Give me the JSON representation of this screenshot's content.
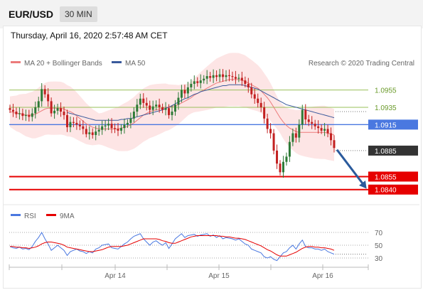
{
  "header": {
    "pair": "EUR/USD",
    "timeframe": "30 MIN",
    "datetime": "Thursday, April 16, 2020 2:57:48 AM CET",
    "copyright": "Research © 2020 Trading Central"
  },
  "legend": {
    "ma20": "MA 20 + Bollinger Bands",
    "ma50": "MA 50",
    "rsi": "RSI",
    "rsi_ma": "9MA"
  },
  "colors": {
    "ma20": "#ec7b7b",
    "ma50": "#3a5a9c",
    "bands": "#fde0e0",
    "resistance": "#9ac05a",
    "pivot": "#4a78e0",
    "support": "#e60000",
    "price_tag": "#333333",
    "arrow": "#2a5a9c",
    "candle_up": "#2d7a36",
    "candle_down": "#c22020",
    "rsi_line": "#4a78e0",
    "rsi_ma": "#e60000"
  },
  "chart_data": [
    {
      "type": "candlestick",
      "title": "EUR/USD",
      "ylim": [
        1.0825,
        1.0985
      ],
      "x_ticks": [
        "Apr 14",
        "Apr 15",
        "Apr 16"
      ],
      "levels": [
        {
          "value": 1.0955,
          "label": "1.0955",
          "kind": "resistance"
        },
        {
          "value": 1.0935,
          "label": "1.0935",
          "kind": "resistance"
        },
        {
          "value": 1.0915,
          "label": "1.0915",
          "kind": "pivot"
        },
        {
          "value": 1.0885,
          "label": "1.0885",
          "kind": "price"
        },
        {
          "value": 1.0855,
          "label": "1.0855",
          "kind": "support"
        },
        {
          "value": 1.084,
          "label": "1.0840",
          "kind": "support"
        }
      ],
      "path_close": [
        1.0932,
        1.093,
        1.0927,
        1.0928,
        1.0925,
        1.0926,
        1.0924,
        1.0928,
        1.0935,
        1.0942,
        1.0956,
        1.095,
        1.0942,
        1.0928,
        1.0931,
        1.0934,
        1.093,
        1.0926,
        1.0912,
        1.0918,
        1.0917,
        1.0915,
        1.0913,
        1.091,
        1.0904,
        1.0906,
        1.0903,
        1.0907,
        1.0909,
        1.0913,
        1.0914,
        1.0916,
        1.0911,
        1.091,
        1.0908,
        1.0911,
        1.0915,
        1.0917,
        1.0922,
        1.093,
        1.0938,
        1.0945,
        1.094,
        1.0937,
        1.0932,
        1.0936,
        1.0938,
        1.0935,
        1.0932,
        1.0934,
        1.0926,
        1.093,
        1.0938,
        1.0946,
        1.0955,
        1.0951,
        1.0958,
        1.0962,
        1.0965,
        1.0963,
        1.0966,
        1.0968,
        1.0971,
        1.0969,
        1.0972,
        1.097,
        1.0973,
        1.097,
        1.0972,
        1.0971,
        1.097,
        1.0968,
        1.0969,
        1.0966,
        1.0962,
        1.0958,
        1.095,
        1.0945,
        1.094,
        1.0935,
        1.0922,
        1.091,
        1.0905,
        1.0885,
        1.087,
        1.086,
        1.0872,
        1.0878,
        1.0895,
        1.0905,
        1.09,
        1.0915,
        1.0932,
        1.0921,
        1.0918,
        1.0916,
        1.0913,
        1.0911,
        1.0908,
        1.091,
        1.0905,
        1.0897,
        1.0888
      ],
      "ma20": [
        1.093,
        1.0929,
        1.0928,
        1.0928,
        1.0927,
        1.0926,
        1.0926,
        1.0926,
        1.0927,
        1.0929,
        1.0931,
        1.0933,
        1.0934,
        1.0934,
        1.0934,
        1.0934,
        1.0934,
        1.0933,
        1.0931,
        1.093,
        1.0928,
        1.0925,
        1.0922,
        1.0919,
        1.0916,
        1.0914,
        1.0912,
        1.0911,
        1.091,
        1.091,
        1.091,
        1.091,
        1.091,
        1.091,
        1.091,
        1.0911,
        1.0912,
        1.0913,
        1.0915,
        1.0917,
        1.092,
        1.0923,
        1.0926,
        1.0928,
        1.093,
        1.0931,
        1.0932,
        1.0933,
        1.0934,
        1.0935,
        1.0935,
        1.0936,
        1.0937,
        1.0938,
        1.094,
        1.0942,
        1.0944,
        1.0946,
        1.0949,
        1.0951,
        1.0953,
        1.0955,
        1.0957,
        1.0959,
        1.0961,
        1.0963,
        1.0964,
        1.0965,
        1.0966,
        1.0967,
        1.0967,
        1.0967,
        1.0967,
        1.0966,
        1.0965,
        1.0963,
        1.0961,
        1.0959,
        1.0957,
        1.0954,
        1.095,
        1.0946,
        1.0941,
        1.0935,
        1.0929,
        1.0923,
        1.0918,
        1.0914,
        1.0911,
        1.0909,
        1.0907,
        1.0906,
        1.0906,
        1.0906,
        1.0906,
        1.0906,
        1.0906,
        1.0906,
        1.0906,
        1.0906,
        1.0905,
        1.0904,
        1.0903
      ],
      "ma50": [
        null,
        null,
        null,
        null,
        null,
        null,
        null,
        null,
        null,
        null,
        null,
        null,
        null,
        null,
        null,
        null,
        null,
        null,
        1.0929,
        1.0928,
        1.0927,
        1.0926,
        1.0925,
        1.0924,
        1.0923,
        1.0922,
        1.0921,
        1.092,
        1.092,
        1.092,
        1.092,
        1.092,
        1.092,
        1.092,
        1.092,
        1.0921,
        1.0921,
        1.0922,
        1.0922,
        1.0923,
        1.0924,
        1.0925,
        1.0926,
        1.0927,
        1.0928,
        1.0929,
        1.093,
        1.0931,
        1.0932,
        1.0934,
        1.0935,
        1.0937,
        1.0939,
        1.0941,
        1.0943,
        1.0945,
        1.0946,
        1.0948,
        1.095,
        1.0951,
        1.0953,
        1.0954,
        1.0955,
        1.0956,
        1.0957,
        1.0958,
        1.0959,
        1.096,
        1.096,
        1.0961,
        1.0961,
        1.0961,
        1.0961,
        1.0961,
        1.096,
        1.0959,
        1.0958,
        1.0957,
        1.0956,
        1.0954,
        1.0952,
        1.095,
        1.0948,
        1.0946,
        1.0944,
        1.0942,
        1.094,
        1.0938,
        1.0937,
        1.0936,
        1.0935,
        1.0934,
        1.0933,
        1.0932,
        1.0931,
        1.093,
        1.0929,
        1.0928,
        1.0927,
        1.0926,
        1.0925,
        1.0924,
        1.0923
      ],
      "band_width": 0.0022,
      "projection": {
        "from": 1.0886,
        "to": 1.084
      }
    },
    {
      "type": "line",
      "title": "RSI",
      "ylim": [
        20,
        80
      ],
      "y_ticks": [
        70,
        50,
        30
      ],
      "series": [
        {
          "name": "RSI",
          "values": [
            48,
            46,
            45,
            47,
            44,
            45,
            43,
            48,
            56,
            62,
            70,
            60,
            52,
            42,
            46,
            50,
            46,
            42,
            34,
            40,
            42,
            44,
            41,
            40,
            37,
            40,
            38,
            44,
            46,
            50,
            51,
            52,
            46,
            45,
            44,
            48,
            52,
            55,
            60,
            64,
            66,
            68,
            60,
            55,
            50,
            55,
            57,
            53,
            50,
            54,
            45,
            52,
            60,
            64,
            68,
            62,
            65,
            66,
            67,
            64,
            66,
            67,
            68,
            64,
            66,
            62,
            65,
            60,
            62,
            61,
            60,
            58,
            60,
            56,
            52,
            50,
            44,
            42,
            40,
            38,
            32,
            30,
            32,
            28,
            26,
            32,
            38,
            40,
            46,
            50,
            44,
            52,
            58,
            48,
            46,
            46,
            44,
            44,
            42,
            44,
            40,
            38,
            36
          ]
        },
        {
          "name": "9MA",
          "values": [
            48,
            48,
            47,
            47,
            46,
            46,
            45,
            46,
            47,
            49,
            52,
            54,
            55,
            55,
            54,
            53,
            52,
            50,
            47,
            46,
            45,
            44,
            43,
            42,
            41,
            40,
            40,
            41,
            42,
            43,
            45,
            47,
            48,
            48,
            48,
            48,
            49,
            50,
            52,
            54,
            56,
            58,
            60,
            60,
            60,
            60,
            60,
            59,
            57,
            56,
            54,
            53,
            53,
            55,
            57,
            59,
            61,
            63,
            64,
            65,
            65,
            65,
            65,
            65,
            65,
            65,
            64,
            64,
            63,
            63,
            62,
            61,
            61,
            60,
            59,
            57,
            55,
            53,
            51,
            49,
            46,
            43,
            41,
            38,
            35,
            33,
            33,
            33,
            35,
            37,
            39,
            42,
            45,
            47,
            48,
            48,
            47,
            47,
            46,
            46,
            45,
            44,
            42
          ]
        }
      ],
      "x_ticks": [
        "Apr 14",
        "Apr 15",
        "Apr 16"
      ]
    }
  ]
}
